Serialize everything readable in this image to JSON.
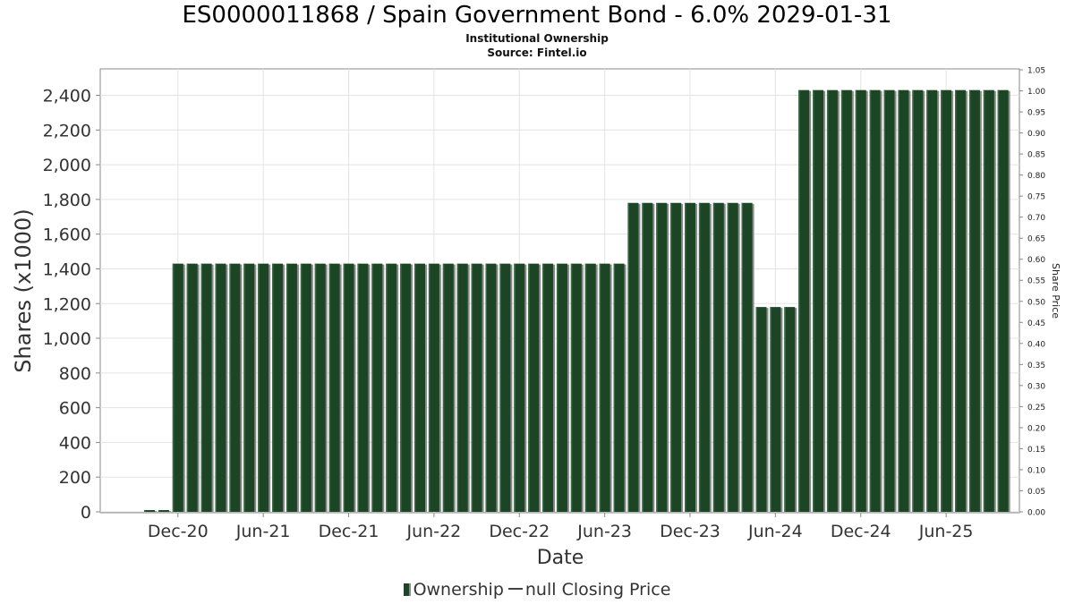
{
  "chart_data": {
    "type": "bar",
    "title": "ES0000011868 / Spain Government Bond - 6.0% 2029-01-31",
    "subtitle": "Institutional Ownership",
    "source": "Source: Fintel.io",
    "xlabel": "Date",
    "ylabel": "Shares (x1000)",
    "y2label": "Share Price",
    "ylim": [
      0,
      2500
    ],
    "y2lim": [
      0,
      1.05
    ],
    "y_ticks": [
      "0",
      "200",
      "400",
      "600",
      "800",
      "1,000",
      "1,200",
      "1,400",
      "1,600",
      "1,800",
      "2,000",
      "2,200",
      "2,400"
    ],
    "y2_ticks": [
      "0.00",
      "0.05",
      "0.10",
      "0.15",
      "0.20",
      "0.25",
      "0.30",
      "0.35",
      "0.40",
      "0.45",
      "0.50",
      "0.55",
      "0.60",
      "0.65",
      "0.70",
      "0.75",
      "0.80",
      "0.85",
      "0.90",
      "0.95",
      "1.00",
      "1.05"
    ],
    "x_tick_labels": [
      "Dec-20",
      "Jun-21",
      "Dec-21",
      "Jun-22",
      "Dec-22",
      "Jun-23",
      "Dec-23",
      "Jun-24",
      "Dec-24",
      "Jun-25"
    ],
    "grid": true,
    "legend_position": "bottom",
    "series": [
      {
        "name": "Ownership",
        "color": "#1c4526",
        "values": [
          10,
          10,
          1430,
          1430,
          1430,
          1430,
          1430,
          1430,
          1430,
          1430,
          1430,
          1430,
          1430,
          1430,
          1430,
          1430,
          1430,
          1430,
          1430,
          1430,
          1430,
          1430,
          1430,
          1430,
          1430,
          1430,
          1430,
          1430,
          1430,
          1430,
          1430,
          1430,
          1430,
          1430,
          1780,
          1780,
          1780,
          1780,
          1780,
          1780,
          1780,
          1780,
          1780,
          1180,
          1180,
          1180,
          2430,
          2430,
          2430,
          2430,
          2430,
          2430,
          2430,
          2430,
          2430,
          2430,
          2430,
          2430,
          2430,
          2430,
          2430
        ]
      },
      {
        "name": "null Closing Price",
        "color": "#444444",
        "values": []
      }
    ]
  }
}
